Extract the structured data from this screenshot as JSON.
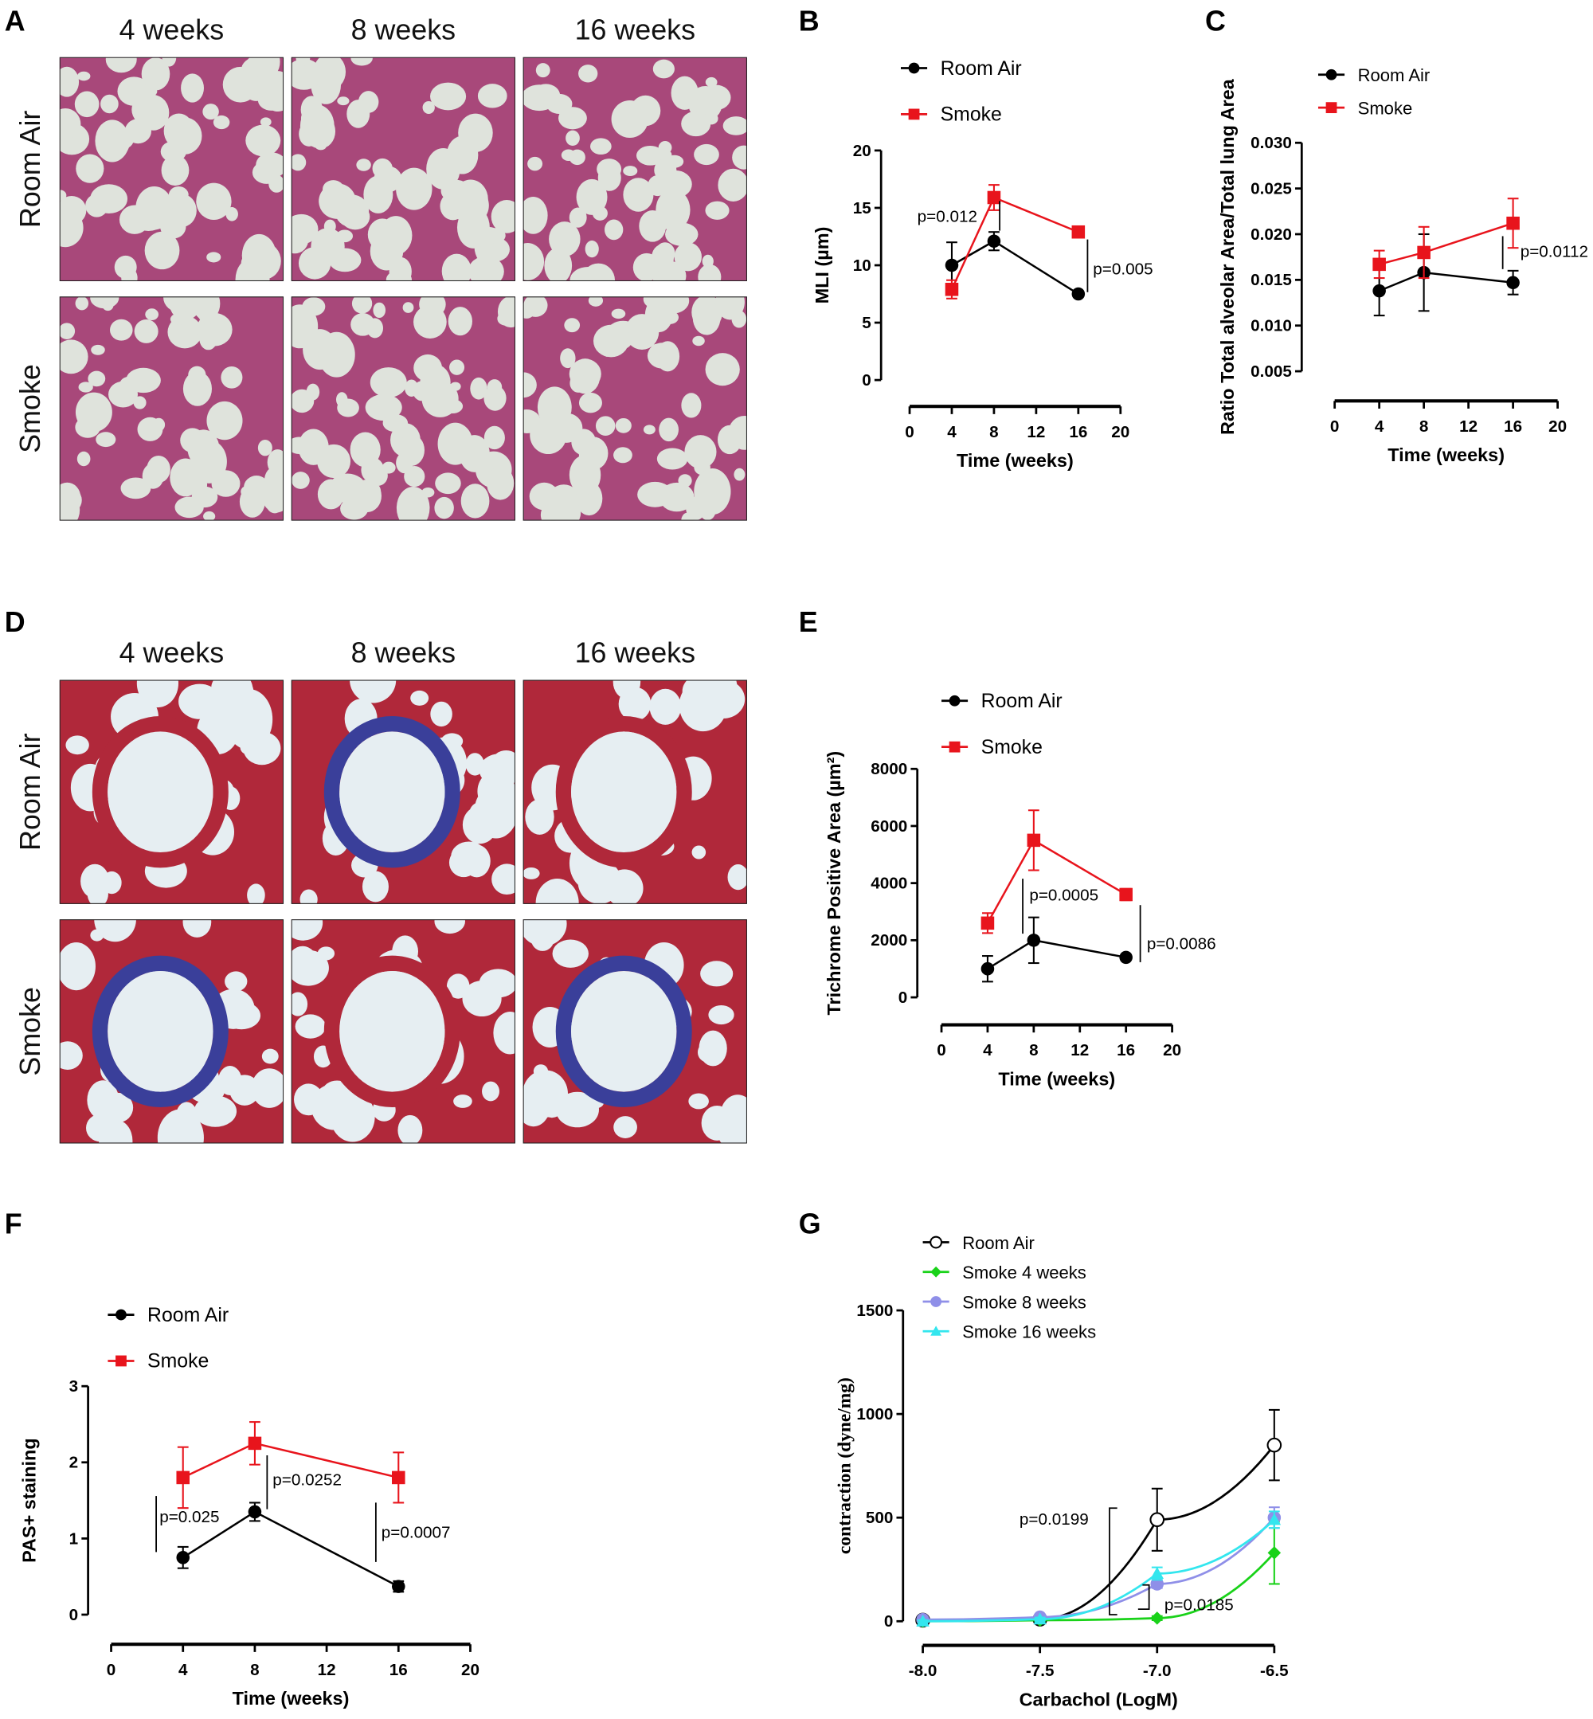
{
  "panel_labels": [
    "A",
    "B",
    "C",
    "D",
    "E",
    "F",
    "G"
  ],
  "histology": {
    "A": {
      "columns": [
        "4 weeks",
        "8 weeks",
        "16 weeks"
      ],
      "rows": [
        "Room Air",
        "Smoke"
      ],
      "stain": "H&E",
      "colors": {
        "bg": "#dfe3dc",
        "tissue": "#a8487a"
      }
    },
    "D": {
      "columns": [
        "4 weeks",
        "8 weeks",
        "16 weeks"
      ],
      "rows": [
        "Room Air",
        "Smoke"
      ],
      "stain": "Trichrome",
      "colors": {
        "bg": "#e6eef2",
        "tissue": "#b0283a",
        "collagen": "#3a3f9a"
      }
    }
  },
  "chart_data": [
    {
      "id": "B",
      "type": "line",
      "xlabel": "Time (weeks)",
      "ylabel": "MLI (µm)",
      "xlim": [
        0,
        20
      ],
      "ylim": [
        0,
        20
      ],
      "xticks": [
        "0",
        "4",
        "8",
        "12",
        "16",
        "20"
      ],
      "yticks": [
        "0",
        "5",
        "10",
        "15",
        "20"
      ],
      "legend": "top-left",
      "series": [
        {
          "name": "Room Air",
          "color": "#000000",
          "marker": "circle",
          "x": [
            4,
            8,
            16
          ],
          "y": [
            10,
            12.1,
            7.5
          ],
          "err": [
            2,
            0.8,
            0.2
          ]
        },
        {
          "name": "Smoke",
          "color": "#e8141c",
          "marker": "square",
          "x": [
            4,
            8,
            16
          ],
          "y": [
            7.9,
            15.9,
            12.9
          ],
          "err": [
            0.8,
            1.1,
            0.3
          ]
        }
      ],
      "annotations": [
        "p=0.012",
        "p=0.005"
      ]
    },
    {
      "id": "C",
      "type": "line",
      "xlabel": "Time (weeks)",
      "ylabel": "Ratio Total alveolar Area/Total lung Area",
      "xlim": [
        0,
        20
      ],
      "ylim": [
        0.005,
        0.03
      ],
      "xticks": [
        "0",
        "4",
        "8",
        "12",
        "16",
        "20"
      ],
      "yticks": [
        "0.005",
        "0.010",
        "0.015",
        "0.020",
        "0.025",
        "0.030"
      ],
      "legend": "top-left",
      "series": [
        {
          "name": "Room Air",
          "color": "#000000",
          "marker": "circle",
          "x": [
            4,
            8,
            16
          ],
          "y": [
            0.0138,
            0.0158,
            0.0147
          ],
          "err": [
            0.0027,
            0.0042,
            0.0013
          ]
        },
        {
          "name": "Smoke",
          "color": "#e8141c",
          "marker": "square",
          "x": [
            4,
            8,
            16
          ],
          "y": [
            0.0167,
            0.018,
            0.0212
          ],
          "err": [
            0.0015,
            0.0028,
            0.0027
          ]
        }
      ],
      "annotations": [
        "p=0.0112"
      ]
    },
    {
      "id": "E",
      "type": "line",
      "xlabel": "Time (weeks)",
      "ylabel": "Trichrome Positive Area (µm²)",
      "xlim": [
        0,
        20
      ],
      "ylim": [
        0,
        8000
      ],
      "xticks": [
        "0",
        "4",
        "8",
        "12",
        "16",
        "20"
      ],
      "yticks": [
        "0",
        "2000",
        "4000",
        "6000",
        "8000"
      ],
      "legend": "top-left",
      "series": [
        {
          "name": "Room Air",
          "color": "#000000",
          "marker": "circle",
          "x": [
            4,
            8,
            16
          ],
          "y": [
            1000,
            2000,
            1400
          ],
          "err": [
            450,
            800,
            80
          ]
        },
        {
          "name": "Smoke",
          "color": "#e8141c",
          "marker": "square",
          "x": [
            4,
            8,
            16
          ],
          "y": [
            2600,
            5500,
            3600
          ],
          "err": [
            350,
            1050,
            200
          ]
        }
      ],
      "annotations": [
        "p=0.0005",
        "p=0.0086"
      ]
    },
    {
      "id": "F",
      "type": "line",
      "xlabel": "Time (weeks)",
      "ylabel": "PAS+ staining",
      "xlim": [
        0,
        20
      ],
      "ylim": [
        0,
        3
      ],
      "xticks": [
        "0",
        "4",
        "8",
        "12",
        "16",
        "20"
      ],
      "yticks": [
        "0",
        "1",
        "2",
        "3"
      ],
      "legend": "top-left",
      "series": [
        {
          "name": "Room Air",
          "color": "#000000",
          "marker": "circle",
          "x": [
            4,
            8,
            16
          ],
          "y": [
            0.75,
            1.35,
            0.37
          ],
          "err": [
            0.14,
            0.12,
            0.07
          ]
        },
        {
          "name": "Smoke",
          "color": "#e8141c",
          "marker": "square",
          "x": [
            4,
            8,
            16
          ],
          "y": [
            1.8,
            2.25,
            1.8
          ],
          "err": [
            0.4,
            0.28,
            0.33
          ]
        }
      ],
      "annotations": [
        "p=0.025",
        "p=0.0252",
        "p=0.0007"
      ]
    },
    {
      "id": "G",
      "type": "line",
      "xlabel": "Carbachol (LogM)",
      "ylabel": "contraction (dyne/mg)",
      "xlim": [
        -8.0,
        -6.5
      ],
      "ylim": [
        0,
        1500
      ],
      "xticks": [
        "-8.0",
        "-7.5",
        "-7.0",
        "-6.5"
      ],
      "yticks": [
        "0",
        "500",
        "1000",
        "1500"
      ],
      "legend": "top-left",
      "series": [
        {
          "name": "Room Air",
          "color": "#000000",
          "marker": "open-circle",
          "x": [
            -8.0,
            -7.5,
            -7.0,
            -6.5
          ],
          "y": [
            5,
            10,
            490,
            850
          ],
          "err": [
            10,
            10,
            150,
            170
          ]
        },
        {
          "name": "Smoke 4 weeks",
          "color": "#19d219",
          "marker": "diamond",
          "x": [
            -8.0,
            -7.5,
            -7.0,
            -6.5
          ],
          "y": [
            0,
            5,
            15,
            330
          ],
          "err": [
            5,
            5,
            10,
            150
          ]
        },
        {
          "name": "Smoke 8 weeks",
          "color": "#8f8fe8",
          "marker": "circle",
          "x": [
            -8.0,
            -7.5,
            -7.0,
            -6.5
          ],
          "y": [
            8,
            20,
            180,
            500
          ],
          "err": [
            10,
            10,
            20,
            50
          ]
        },
        {
          "name": "Smoke 16 weeks",
          "color": "#33e6ee",
          "marker": "triangle",
          "x": [
            -8.0,
            -7.5,
            -7.0,
            -6.5
          ],
          "y": [
            0,
            10,
            230,
            490
          ],
          "err": [
            5,
            8,
            30,
            40
          ]
        }
      ],
      "annotations": [
        "p=0.0199",
        "p=0.0185"
      ]
    }
  ]
}
